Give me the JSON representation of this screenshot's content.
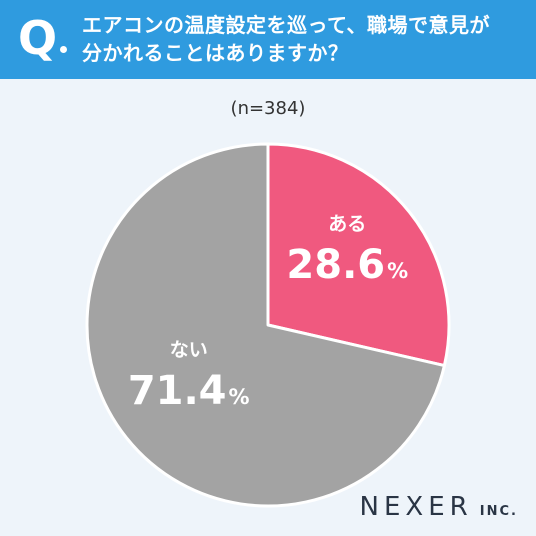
{
  "header": {
    "q_letter": "Q",
    "question_line1": "エアコンの温度設定を巡って、職場で意見が",
    "question_line2": "分かれることはありますか？"
  },
  "sample_label": "(n=384)",
  "brand": {
    "name": "NEXER",
    "suffix": "INC."
  },
  "colors": {
    "header_bg": "#2f9bdf",
    "background": "#eef4fa",
    "yes": "#f0597f",
    "no": "#a3a3a3"
  },
  "chart_data": {
    "type": "pie",
    "title": "エアコンの温度設定を巡って、職場で意見が分かれることはありますか？",
    "n": "(n=384)",
    "slices": [
      {
        "label": "ある",
        "value": 28.6,
        "value_text": "28.6",
        "unit": "%",
        "color": "#f0597f"
      },
      {
        "label": "ない",
        "value": 71.4,
        "value_text": "71.4",
        "unit": "%",
        "color": "#a3a3a3"
      }
    ]
  }
}
